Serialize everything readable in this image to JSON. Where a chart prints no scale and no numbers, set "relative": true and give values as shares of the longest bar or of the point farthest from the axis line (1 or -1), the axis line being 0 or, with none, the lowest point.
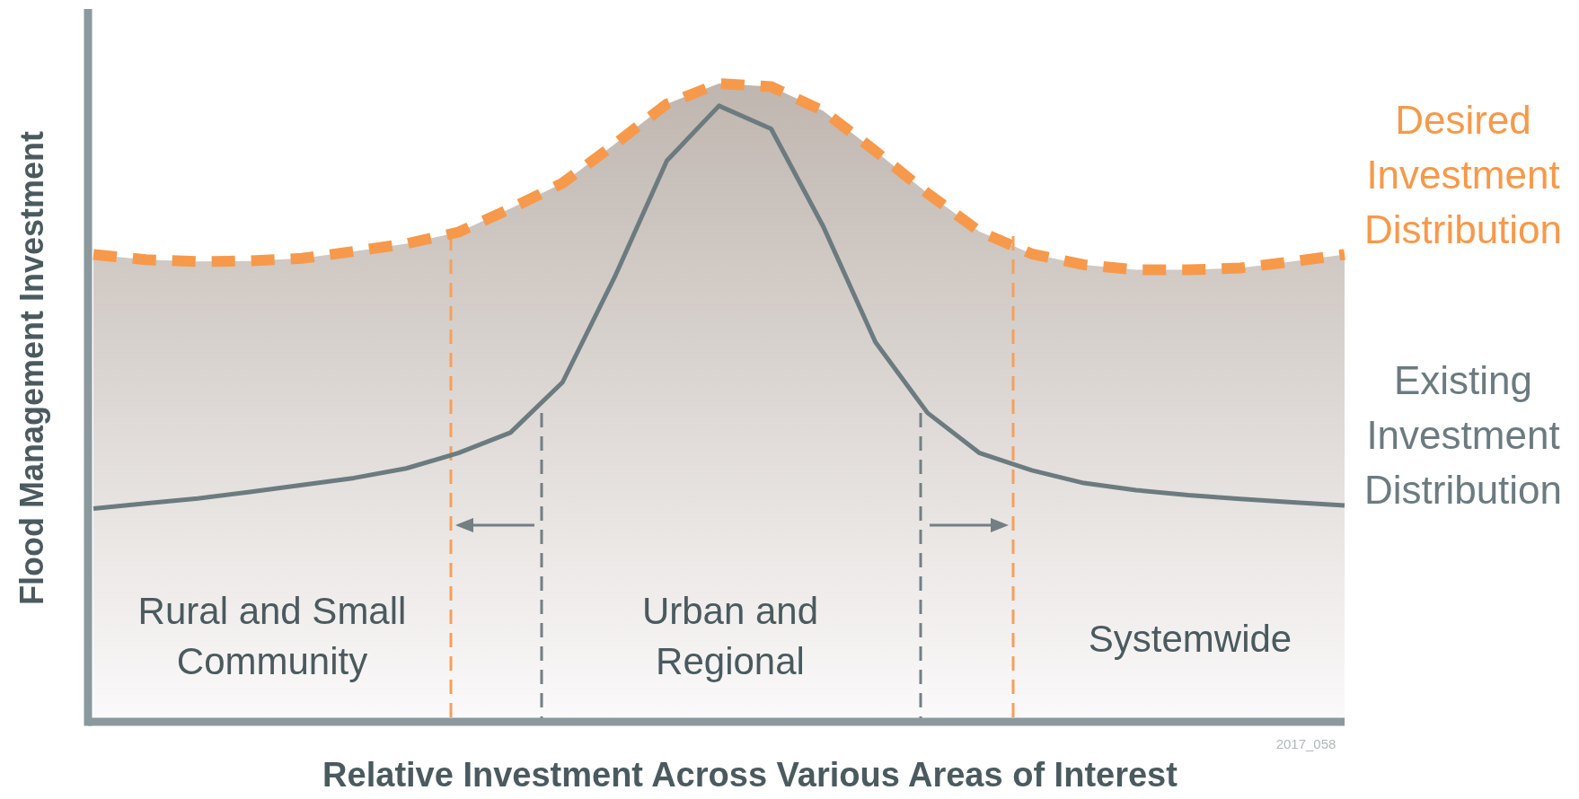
{
  "chart_data": {
    "type": "line",
    "relative": true,
    "xlabel": "Relative Investment Across Various Areas of Interest",
    "ylabel": "Flood Management Investment",
    "marker": "none",
    "categories": [
      null,
      null,
      null,
      null,
      null,
      null,
      null,
      null,
      null,
      null,
      null,
      null,
      null,
      null,
      null,
      null,
      null,
      null,
      null,
      null,
      null,
      null,
      null,
      null,
      null
    ],
    "series": [
      {
        "name": "Desired Investment Distribution",
        "type": "line",
        "color": "#f7994a",
        "line_style": "dashed",
        "values": [
          0.732,
          0.724,
          0.721,
          0.722,
          0.726,
          0.737,
          0.749,
          0.767,
          0.804,
          0.844,
          0.905,
          0.968,
          1,
          0.995,
          0.957,
          0.894,
          0.828,
          0.768,
          0.733,
          0.716,
          0.708,
          0.708,
          0.711,
          0.721,
          0.732
        ]
      },
      {
        "name": "Existing Investment Distribution",
        "type": "line",
        "color": "#6b7b7f",
        "line_style": "solid",
        "values": [
          0.334,
          0.342,
          0.35,
          0.36,
          0.371,
          0.382,
          0.397,
          0.421,
          0.453,
          0.532,
          0.697,
          0.879,
          0.965,
          0.929,
          0.776,
          0.595,
          0.484,
          0.421,
          0.394,
          0.374,
          0.363,
          0.355,
          0.349,
          0.344,
          0.339
        ]
      }
    ],
    "annotations": [
      "Rural and Small\nCommunity",
      "Urban and\nRegional",
      "Systemwide",
      "2017_058"
    ]
  }
}
